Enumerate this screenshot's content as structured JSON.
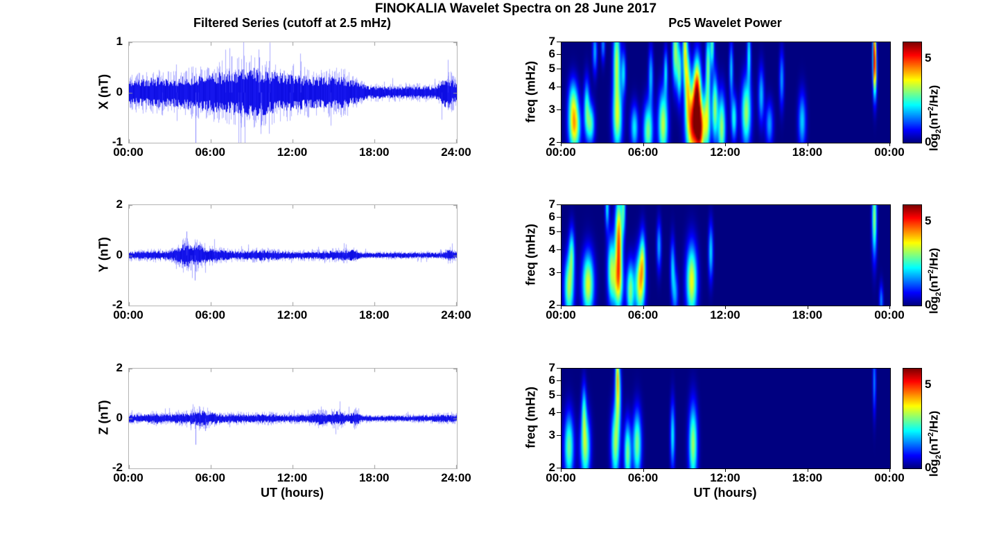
{
  "figure": {
    "title": "FINOKALIA Wavelet Spectra on 28 June 2017",
    "background_color": "#ffffff"
  },
  "left_column": {
    "title": "Filtered Series (cutoff at 2.5 mHz)",
    "xlabel": "UT (hours)",
    "xtick_hours": [
      0,
      6,
      12,
      18,
      24
    ],
    "xtick_labels": [
      "00:00",
      "06:00",
      "12:00",
      "18:00",
      "24:00"
    ],
    "trace_color": "#0000ee",
    "frame_color": "#b3b3b3"
  },
  "right_column": {
    "title": "Pc5 Wavelet Power",
    "xlabel": "UT (hours)",
    "xtick_hours": [
      0,
      6,
      12,
      18,
      24
    ],
    "xtick_labels": [
      "00:00",
      "06:00",
      "12:00",
      "18:00",
      "00:00"
    ],
    "ylabel": "freq (mHz)",
    "ytick_values": [
      7,
      6,
      5,
      4,
      3,
      2
    ],
    "freq_scale": "log",
    "colormap": "jet",
    "colorbar": {
      "range": [
        0,
        6
      ],
      "tick_values": [
        5,
        0
      ],
      "tick_labels": [
        "5",
        "0"
      ],
      "label_text": "log2(nT2/Hz)",
      "label_parts": {
        "prefix": "log",
        "sub": "2",
        "mid": "(nT",
        "sup": "2",
        "suffix": "/Hz)"
      }
    }
  },
  "chart_data": [
    {
      "type": "line",
      "component": "X",
      "ylabel": "X (nT)",
      "x_range_hours": [
        0,
        24
      ],
      "ylim": [
        -1,
        1
      ],
      "ytick_labels": [
        "1",
        "0",
        "-1"
      ],
      "description": "band-limited noise envelope (nT) vs UT hours",
      "envelope_t": [
        0,
        1,
        2,
        3,
        4,
        5,
        6,
        7,
        8,
        9,
        9.8,
        10.5,
        12,
        13,
        14,
        15,
        16,
        16.8,
        17.5,
        19,
        21,
        22.5,
        23.3,
        24
      ],
      "envelope_amp": [
        0.22,
        0.25,
        0.28,
        0.25,
        0.3,
        0.32,
        0.35,
        0.38,
        0.42,
        0.45,
        0.42,
        0.38,
        0.33,
        0.3,
        0.28,
        0.3,
        0.28,
        0.18,
        0.12,
        0.11,
        0.11,
        0.12,
        0.3,
        0.18
      ],
      "spikes": [
        [
          4.87,
          -1.0
        ],
        [
          7.5,
          0.72
        ],
        [
          9.55,
          0.7
        ],
        [
          9.7,
          -0.65
        ]
      ]
    },
    {
      "type": "line",
      "component": "Y",
      "ylabel": "Y (nT)",
      "x_range_hours": [
        0,
        24
      ],
      "ylim": [
        -2,
        2
      ],
      "ytick_labels": [
        "2",
        "0",
        "-2"
      ],
      "description": "band-limited noise envelope (nT) vs UT hours",
      "envelope_t": [
        0,
        1,
        2,
        3,
        3.6,
        4.2,
        4.6,
        5,
        5.4,
        6,
        7,
        8,
        9,
        9.7,
        10.5,
        12,
        14,
        15,
        16.5,
        17,
        20,
        23,
        23.5,
        24
      ],
      "envelope_amp": [
        0.13,
        0.14,
        0.18,
        0.15,
        0.28,
        0.5,
        0.32,
        0.42,
        0.3,
        0.25,
        0.18,
        0.15,
        0.17,
        0.2,
        0.17,
        0.13,
        0.15,
        0.17,
        0.2,
        0.1,
        0.1,
        0.1,
        0.22,
        0.15
      ],
      "spikes": [
        [
          4.2,
          0.95
        ],
        [
          4.85,
          -1.0
        ],
        [
          4.5,
          -0.6
        ]
      ]
    },
    {
      "type": "line",
      "component": "Z",
      "ylabel": "Z (nT)",
      "x_range_hours": [
        0,
        24
      ],
      "ylim": [
        -2,
        2
      ],
      "ytick_labels": [
        "2",
        "0",
        "-2"
      ],
      "description": "band-limited noise envelope (nT) vs UT hours",
      "envelope_t": [
        0,
        1,
        2,
        2.3,
        3,
        4,
        4.8,
        5.3,
        5.8,
        6.5,
        7,
        8,
        9,
        10,
        11,
        12,
        13,
        13.9,
        14.5,
        15.3,
        16,
        16.6,
        17,
        18,
        20,
        22,
        23,
        24
      ],
      "envelope_amp": [
        0.15,
        0.15,
        0.2,
        0.15,
        0.15,
        0.2,
        0.25,
        0.3,
        0.25,
        0.18,
        0.15,
        0.17,
        0.15,
        0.17,
        0.15,
        0.13,
        0.15,
        0.25,
        0.2,
        0.28,
        0.15,
        0.28,
        0.12,
        0.1,
        0.1,
        0.12,
        0.15,
        0.13
      ],
      "spikes": [
        [
          4.9,
          -1.05
        ],
        [
          5.6,
          -0.5
        ]
      ]
    },
    {
      "type": "heatmap",
      "component": "X",
      "ylabel": "freq (mHz)",
      "x_range_hours": [
        0,
        24
      ],
      "f_range_mHz": [
        2,
        7
      ],
      "f_scale": "log",
      "value_range": [
        0,
        6
      ],
      "value_label": "log2(nT2/Hz)",
      "colormap": "jet",
      "blob_format": [
        "t_hours",
        "f_mHz",
        "sigma_t_hours",
        "sigma_lnf",
        "power_log2"
      ],
      "blobs": [
        [
          0.9,
          2.4,
          0.3,
          0.22,
          3.8
        ],
        [
          0.8,
          3.4,
          0.25,
          0.2,
          2.2
        ],
        [
          1.8,
          3.1,
          0.15,
          0.25,
          2.4
        ],
        [
          2.1,
          2.5,
          0.2,
          0.18,
          2.6
        ],
        [
          2.4,
          6.3,
          0.12,
          0.2,
          1.8
        ],
        [
          3.0,
          6.8,
          0.1,
          0.15,
          1.6
        ],
        [
          4.0,
          5.6,
          0.18,
          0.35,
          3.2
        ],
        [
          4.05,
          2.7,
          0.25,
          0.3,
          3.2
        ],
        [
          4.5,
          4.8,
          0.12,
          0.2,
          2.0
        ],
        [
          5.3,
          2.4,
          0.2,
          0.2,
          2.2
        ],
        [
          6.3,
          2.3,
          0.25,
          0.25,
          3.0
        ],
        [
          6.5,
          4.6,
          0.12,
          0.25,
          1.9
        ],
        [
          7.4,
          2.5,
          0.25,
          0.3,
          3.4
        ],
        [
          7.6,
          4.9,
          0.1,
          0.2,
          2.0
        ],
        [
          8.3,
          6.3,
          0.15,
          0.3,
          3.2
        ],
        [
          8.6,
          4.8,
          0.12,
          0.25,
          2.6
        ],
        [
          9.0,
          6.5,
          0.12,
          0.3,
          3.3
        ],
        [
          9.2,
          4.2,
          0.15,
          0.3,
          3.0
        ],
        [
          9.6,
          2.5,
          0.35,
          0.32,
          5.2
        ],
        [
          9.9,
          3.9,
          0.2,
          0.3,
          4.3
        ],
        [
          10.1,
          2.3,
          0.2,
          0.25,
          4.0
        ],
        [
          10.6,
          2.6,
          0.2,
          0.28,
          3.4
        ],
        [
          10.7,
          5.2,
          0.12,
          0.3,
          2.9
        ],
        [
          11.0,
          6.8,
          0.1,
          0.2,
          2.6
        ],
        [
          11.2,
          3.1,
          0.15,
          0.3,
          3.1
        ],
        [
          11.7,
          2.4,
          0.2,
          0.3,
          3.2
        ],
        [
          12.4,
          5.0,
          0.1,
          0.25,
          2.0
        ],
        [
          12.6,
          2.7,
          0.15,
          0.2,
          2.4
        ],
        [
          13.5,
          2.9,
          0.25,
          0.3,
          3.2
        ],
        [
          13.7,
          6.0,
          0.1,
          0.25,
          2.2
        ],
        [
          14.6,
          3.6,
          0.15,
          0.25,
          1.9
        ],
        [
          15.2,
          2.5,
          0.2,
          0.2,
          1.7
        ],
        [
          16.1,
          4.4,
          0.12,
          0.25,
          1.7
        ],
        [
          17.6,
          2.6,
          0.2,
          0.25,
          2.0
        ],
        [
          22.9,
          6.3,
          0.08,
          0.3,
          4.2
        ],
        [
          22.95,
          4.8,
          0.1,
          0.25,
          2.6
        ]
      ]
    },
    {
      "type": "heatmap",
      "component": "Y",
      "ylabel": "freq (mHz)",
      "x_range_hours": [
        0,
        24
      ],
      "f_range_mHz": [
        2,
        7
      ],
      "f_scale": "log",
      "value_range": [
        0,
        6
      ],
      "value_label": "log2(nT2/Hz)",
      "colormap": "jet",
      "blob_format": [
        "t_hours",
        "f_mHz",
        "sigma_t_hours",
        "sigma_lnf",
        "power_log2"
      ],
      "blobs": [
        [
          0.5,
          2.5,
          0.25,
          0.28,
          3.2
        ],
        [
          0.7,
          3.9,
          0.15,
          0.22,
          2.2
        ],
        [
          1.9,
          2.6,
          0.3,
          0.28,
          3.6
        ],
        [
          3.3,
          6.9,
          0.1,
          0.2,
          2.2
        ],
        [
          3.6,
          3.1,
          0.2,
          0.3,
          3.0
        ],
        [
          4.15,
          4.6,
          0.18,
          0.38,
          4.6
        ],
        [
          4.1,
          2.6,
          0.25,
          0.25,
          3.0
        ],
        [
          4.5,
          6.9,
          0.1,
          0.25,
          2.4
        ],
        [
          5.0,
          2.4,
          0.2,
          0.25,
          3.0
        ],
        [
          5.7,
          2.6,
          0.25,
          0.28,
          3.7
        ],
        [
          5.9,
          3.6,
          0.15,
          0.25,
          2.4
        ],
        [
          7.1,
          4.2,
          0.12,
          0.22,
          1.8
        ],
        [
          8.1,
          3.2,
          0.12,
          0.25,
          1.9
        ],
        [
          8.3,
          2.3,
          0.15,
          0.2,
          1.6
        ],
        [
          9.5,
          2.7,
          0.28,
          0.32,
          3.7
        ],
        [
          10.9,
          3.9,
          0.12,
          0.25,
          2.1
        ],
        [
          22.9,
          6.0,
          0.12,
          0.35,
          3.2
        ],
        [
          23.4,
          2.1,
          0.1,
          0.15,
          1.6
        ]
      ]
    },
    {
      "type": "heatmap",
      "component": "Z",
      "ylabel": "freq (mHz)",
      "x_range_hours": [
        0,
        24
      ],
      "f_range_mHz": [
        2,
        7
      ],
      "f_scale": "log",
      "value_range": [
        0,
        6
      ],
      "value_label": "log2(nT2/Hz)",
      "colormap": "jet",
      "blob_format": [
        "t_hours",
        "f_mHz",
        "sigma_t_hours",
        "sigma_lnf",
        "power_log2"
      ],
      "blobs": [
        [
          0.5,
          2.6,
          0.25,
          0.3,
          2.9
        ],
        [
          1.7,
          2.6,
          0.25,
          0.3,
          3.1
        ],
        [
          1.6,
          4.1,
          0.12,
          0.25,
          2.0
        ],
        [
          3.9,
          2.7,
          0.22,
          0.32,
          3.1
        ],
        [
          4.1,
          5.0,
          0.15,
          0.3,
          3.0
        ],
        [
          4.05,
          6.9,
          0.1,
          0.2,
          2.2
        ],
        [
          4.8,
          2.4,
          0.18,
          0.28,
          3.0
        ],
        [
          5.5,
          2.7,
          0.22,
          0.3,
          3.0
        ],
        [
          8.1,
          3.0,
          0.12,
          0.3,
          2.2
        ],
        [
          9.6,
          2.7,
          0.22,
          0.35,
          3.2
        ],
        [
          22.9,
          6.0,
          0.08,
          0.3,
          1.6
        ]
      ]
    }
  ]
}
